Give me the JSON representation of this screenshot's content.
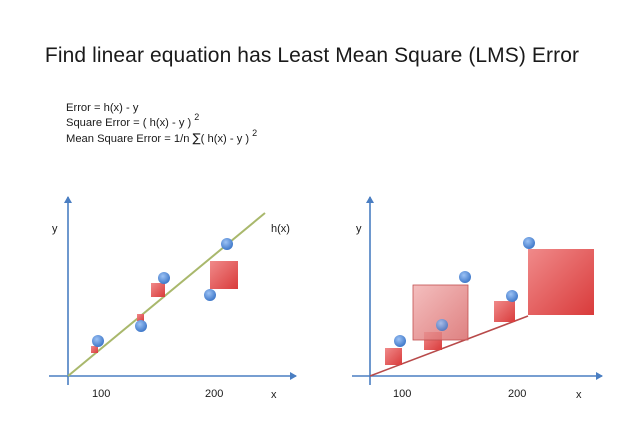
{
  "title": "Find linear equation has Least Mean Square (LMS) Error",
  "formulas": {
    "error": "Error = h(x) - y",
    "square_error": "Square Error = ( h(x) - y )",
    "square_error_exp": "2",
    "mean_square_prefix": "Mean Square Error =  1/n ",
    "mean_square_sum": "∑",
    "mean_square_suffix": "( h(x) - y )",
    "mean_square_exp": "2"
  },
  "left_plot": {
    "y_label": "y",
    "x_label": "x",
    "tick_100": "100",
    "tick_200": "200",
    "line_label": "h(x)"
  },
  "right_plot": {
    "y_label": "y",
    "x_label": "x",
    "tick_100": "100",
    "tick_200": "200"
  },
  "colors": {
    "axis": "#4a7ec2",
    "fit_line": "#a9b86c",
    "bad_line": "#b84a4a",
    "point": "#5b8fdb",
    "error_square": "#e05a5a"
  }
}
